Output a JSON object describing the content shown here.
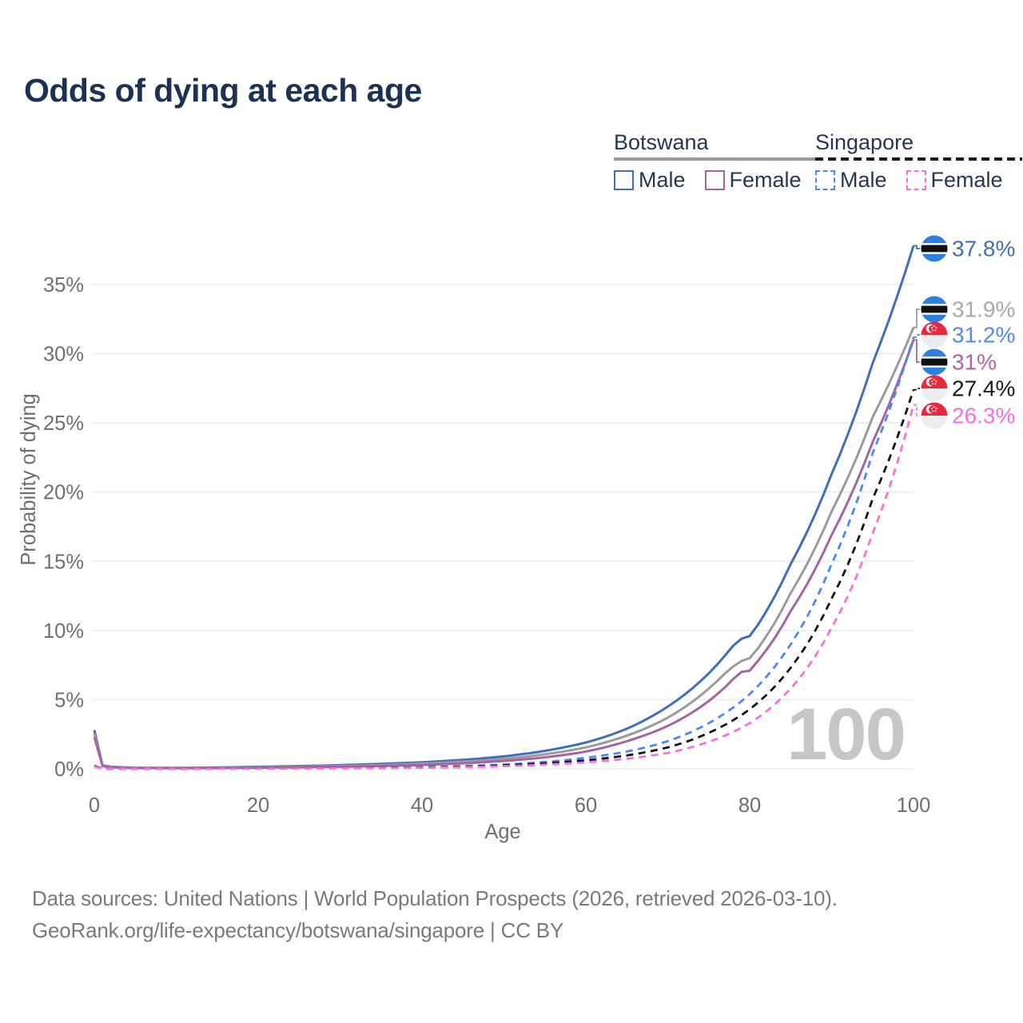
{
  "header": {
    "title": "Odds of dying at each age"
  },
  "legend": {
    "groups": [
      {
        "country": "Botswana",
        "underline_color": "#9a9a9a",
        "underline_dashed": false,
        "items": [
          {
            "label": "Male",
            "color": "#3f6fba",
            "dashed": false
          },
          {
            "label": "Female",
            "color": "#a565a4",
            "dashed": false
          }
        ]
      },
      {
        "country": "Singapore",
        "underline_color": "#1c1c1c",
        "underline_dashed": true,
        "items": [
          {
            "label": "Male",
            "color": "#4b89f2",
            "dashed": true
          },
          {
            "label": "Female",
            "color": "#f96fe3",
            "dashed": true
          }
        ]
      }
    ]
  },
  "chart_data": {
    "type": "line",
    "title": "Odds of dying at each age",
    "xlabel": "Age",
    "ylabel": "Probability of dying",
    "xlim": [
      0,
      100
    ],
    "ylim": [
      0,
      38
    ],
    "x_ticks": [
      0,
      20,
      40,
      60,
      80,
      100
    ],
    "y_ticks": [
      {
        "value": 0,
        "label": "0%"
      },
      {
        "value": 5,
        "label": "5%"
      },
      {
        "value": 10,
        "label": "10%"
      },
      {
        "value": 15,
        "label": "15%"
      },
      {
        "value": 20,
        "label": "20%"
      },
      {
        "value": 25,
        "label": "25%"
      },
      {
        "value": 30,
        "label": "30%"
      },
      {
        "value": 35,
        "label": "35%"
      }
    ],
    "grid": "horizontal",
    "legend_position": "top-right",
    "watermark": "100",
    "series": [
      {
        "name": "Botswana Male",
        "country": "Botswana",
        "sex": "male",
        "color": "#3f6fba",
        "dashed": false,
        "ages": [
          0,
          1,
          2,
          5,
          10,
          15,
          20,
          25,
          30,
          35,
          40,
          45,
          50,
          55,
          60,
          65,
          70,
          75,
          77,
          78,
          79,
          80,
          81,
          83,
          85,
          90,
          95,
          100
        ],
        "values": [
          2.8,
          0.25,
          0.15,
          0.08,
          0.07,
          0.1,
          0.15,
          0.2,
          0.27,
          0.36,
          0.48,
          0.65,
          0.9,
          1.3,
          1.9,
          2.9,
          4.5,
          6.9,
          8.2,
          8.9,
          9.4,
          9.6,
          10.4,
          12.4,
          14.8,
          21.3,
          29.3,
          37.8
        ]
      },
      {
        "name": "Botswana",
        "country": "Botswana",
        "sex": "both",
        "color": "#9b9b9b",
        "dashed": false,
        "ages": [
          0,
          1,
          2,
          5,
          10,
          15,
          20,
          25,
          30,
          35,
          40,
          45,
          50,
          55,
          60,
          65,
          70,
          75,
          77,
          78,
          79,
          80,
          81,
          83,
          85,
          90,
          95,
          100
        ],
        "values": [
          2.55,
          0.22,
          0.13,
          0.07,
          0.06,
          0.08,
          0.11,
          0.15,
          0.21,
          0.28,
          0.38,
          0.52,
          0.72,
          1.05,
          1.55,
          2.4,
          3.7,
          5.8,
          6.9,
          7.4,
          7.8,
          8.0,
          8.7,
          10.5,
          12.7,
          18.6,
          25.4,
          31.9
        ]
      },
      {
        "name": "Botswana Female",
        "country": "Botswana",
        "sex": "female",
        "color": "#a565a4",
        "dashed": false,
        "ages": [
          0,
          1,
          2,
          5,
          10,
          15,
          20,
          25,
          30,
          35,
          40,
          45,
          50,
          55,
          60,
          65,
          70,
          75,
          77,
          78,
          79,
          80,
          81,
          83,
          85,
          90,
          95,
          100
        ],
        "values": [
          2.3,
          0.19,
          0.11,
          0.06,
          0.05,
          0.06,
          0.08,
          0.11,
          0.15,
          0.2,
          0.28,
          0.4,
          0.57,
          0.83,
          1.25,
          2.0,
          3.1,
          4.9,
          5.9,
          6.5,
          7.0,
          7.1,
          7.8,
          9.4,
          11.4,
          16.9,
          23.6,
          31.0
        ]
      },
      {
        "name": "Singapore Male",
        "country": "Singapore",
        "sex": "male",
        "color": "#4b89f2",
        "dashed": true,
        "ages": [
          0,
          1,
          2,
          5,
          10,
          15,
          20,
          25,
          30,
          35,
          40,
          45,
          50,
          55,
          60,
          65,
          70,
          75,
          80,
          85,
          90,
          95,
          100
        ],
        "values": [
          0.22,
          0.02,
          0.012,
          0.01,
          0.01,
          0.025,
          0.045,
          0.055,
          0.065,
          0.09,
          0.13,
          0.2,
          0.31,
          0.5,
          0.8,
          1.25,
          2.0,
          3.3,
          5.4,
          9.0,
          14.8,
          22.8,
          31.2
        ]
      },
      {
        "name": "Singapore",
        "country": "Singapore",
        "sex": "both",
        "color": "#141414",
        "dashed": true,
        "ages": [
          0,
          1,
          2,
          5,
          10,
          15,
          20,
          25,
          30,
          35,
          40,
          45,
          50,
          55,
          60,
          65,
          70,
          75,
          80,
          85,
          90,
          95,
          100
        ],
        "values": [
          0.19,
          0.018,
          0.01,
          0.008,
          0.008,
          0.02,
          0.035,
          0.045,
          0.055,
          0.07,
          0.1,
          0.16,
          0.25,
          0.4,
          0.62,
          0.97,
          1.55,
          2.6,
          4.3,
          7.3,
          12.3,
          19.5,
          27.4
        ]
      },
      {
        "name": "Singapore Female",
        "country": "Singapore",
        "sex": "female",
        "color": "#f96fe3",
        "dashed": true,
        "ages": [
          0,
          1,
          2,
          5,
          10,
          15,
          20,
          25,
          30,
          35,
          40,
          45,
          50,
          55,
          60,
          65,
          70,
          75,
          80,
          85,
          90,
          95,
          100
        ],
        "values": [
          0.16,
          0.015,
          0.009,
          0.007,
          0.007,
          0.015,
          0.025,
          0.032,
          0.042,
          0.055,
          0.08,
          0.12,
          0.19,
          0.3,
          0.47,
          0.73,
          1.15,
          1.95,
          3.3,
          5.8,
          10.2,
          17.0,
          26.3
        ]
      }
    ],
    "annotations": [
      {
        "label": "37.8%",
        "value": 37.8,
        "series_index": 0,
        "flag": "botswana",
        "color": "#3f6fba",
        "dashed": false
      },
      {
        "label": "31.9%",
        "value": 31.9,
        "series_index": 1,
        "flag": "botswana",
        "color": "#a9a9a9",
        "dashed": false
      },
      {
        "label": "31.2%",
        "value": 31.2,
        "series_index": 3,
        "flag": "singapore",
        "color": "#4e8cf2",
        "dashed": true
      },
      {
        "label": "31%",
        "value": 31.0,
        "series_index": 2,
        "flag": "botswana",
        "color": "#ad64ab",
        "dashed": false
      },
      {
        "label": "27.4%",
        "value": 27.4,
        "series_index": 4,
        "flag": "singapore",
        "color": "#1a1a1a",
        "dashed": true
      },
      {
        "label": "26.3%",
        "value": 26.3,
        "series_index": 5,
        "flag": "singapore",
        "color": "#f96fe3",
        "dashed": true
      }
    ]
  },
  "footer": {
    "line1": "Data sources: United Nations | World Population Prospects (2026, retrieved 2026-03-10).",
    "line2": "GeoRank.org/life-expectancy/botswana/singapore | CC BY"
  }
}
